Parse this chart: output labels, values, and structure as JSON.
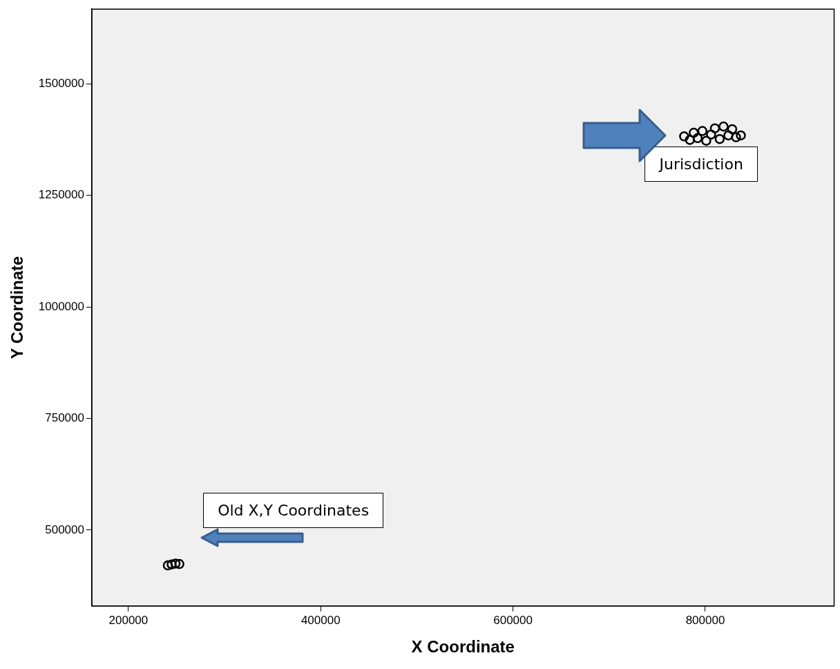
{
  "chart_data": {
    "type": "scatter",
    "xlabel": "X Coordinate",
    "ylabel": "Y Coordinate",
    "xlim": [
      162000,
      934000
    ],
    "ylim": [
      330000,
      1667000
    ],
    "xticks": [
      200000,
      400000,
      600000,
      800000
    ],
    "yticks": [
      500000,
      750000,
      1000000,
      1250000,
      1500000
    ],
    "grid": false,
    "legend": false,
    "marker": "circle",
    "annotations": [
      "Jurisdiction",
      "Old X,Y Coordinates"
    ],
    "series": [
      {
        "color": "#000000",
        "x": [
          241000,
          245000,
          249000,
          253000,
          778000,
          784000,
          788000,
          792000,
          797000,
          801000,
          806000,
          810000,
          815000,
          819000,
          824000,
          828000,
          832000,
          837000
        ],
        "values": [
          421000,
          423000,
          425000,
          424000,
          1382000,
          1374000,
          1390000,
          1378000,
          1394000,
          1372000,
          1386000,
          1400000,
          1376000,
          1404000,
          1384000,
          1398000,
          1380000,
          1384000
        ]
      }
    ]
  }
}
